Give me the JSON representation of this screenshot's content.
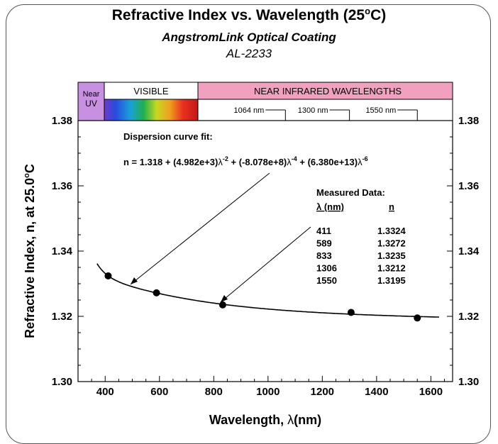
{
  "title": "Refractive Index vs. Wavelength (25°C)",
  "title_main": "Refractive Index vs. Wavelength (25",
  "title_deg": "o",
  "title_end": "C)",
  "subtitle": "AngstromLink Optical Coating",
  "product_code": "AL-2233",
  "bands": {
    "near_uv_line1": "Near",
    "near_uv_line2": "UV",
    "visible": "VISIBLE",
    "near_ir": "NEAR INFRARED WAVELENGTHS",
    "markers": [
      "1064 nm",
      "1300 nm",
      "1550 nm"
    ]
  },
  "colors": {
    "near_uv_band": "#c890e0",
    "near_ir_band": "#f2a0c0",
    "curve": "#000000"
  },
  "formula": {
    "heading": "Dispersion curve fit:",
    "text": "n = 1.318 + (4.982e+3)λ-2 + (-8.078e+8)λ-4 + (6.380e+13)λ-6"
  },
  "measured_table": {
    "heading": "Measured Data:",
    "col1": "λ (nm)",
    "col2": "n",
    "rows": [
      [
        "411",
        "1.3324"
      ],
      [
        "589",
        "1.3272"
      ],
      [
        "833",
        "1.3235"
      ],
      [
        "1306",
        "1.3212"
      ],
      [
        "1550",
        "1.3195"
      ]
    ]
  },
  "chart_data": {
    "type": "scatter",
    "title": "Refractive Index vs. Wavelength (25°C)",
    "xlabel": "Wavelength, λ(nm)",
    "ylabel": "Refractive Index, n, at 25.0°C",
    "xlim": [
      300,
      1680
    ],
    "ylim": [
      1.3,
      1.38
    ],
    "x_ticks": [
      "400",
      "600",
      "800",
      "1000",
      "1200",
      "1400",
      "1600"
    ],
    "y_ticks": [
      "1.30",
      "1.32",
      "1.34",
      "1.36",
      "1.38"
    ],
    "series": [
      {
        "points": [
          [
            411,
            1.3324
          ],
          [
            589,
            1.3272
          ],
          [
            833,
            1.3235
          ],
          [
            1306,
            1.3212
          ],
          [
            1550,
            1.3195
          ]
        ]
      }
    ],
    "fit": {
      "a0": 1.318,
      "a2": 4982,
      "a4": -807800000,
      "a6": 63800000000000.0,
      "x_range": [
        370,
        1630
      ]
    },
    "grid": false
  }
}
